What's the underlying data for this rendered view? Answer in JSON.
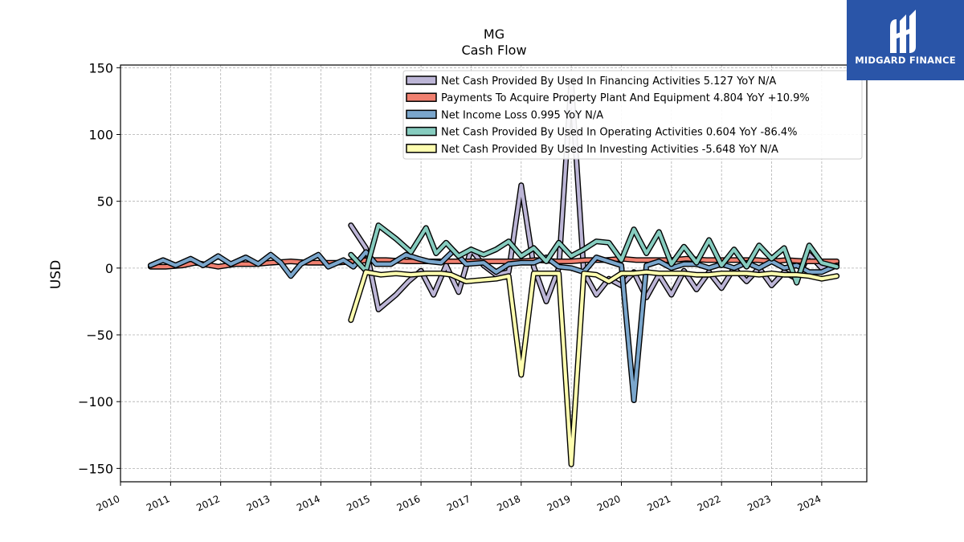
{
  "chart_data": {
    "type": "line",
    "title": "MG",
    "subtitle": "Cash Flow",
    "ylabel": "USD",
    "xlabel": "",
    "ylim": [
      -160,
      152
    ],
    "xlim": [
      2010.0,
      2024.9
    ],
    "yticks": [
      -150,
      -100,
      -50,
      0,
      50,
      100,
      150
    ],
    "ytick_labels": [
      "−150",
      "−100",
      "−50",
      "0",
      "50",
      "100",
      "150"
    ],
    "xticks": [
      2010,
      2011,
      2012,
      2013,
      2014,
      2015,
      2016,
      2017,
      2018,
      2019,
      2020,
      2021,
      2022,
      2023,
      2024
    ],
    "xtick_labels": [
      "2010",
      "2011",
      "2012",
      "2013",
      "2014",
      "2015",
      "2016",
      "2017",
      "2018",
      "2019",
      "2020",
      "2021",
      "2022",
      "2023",
      "2024"
    ],
    "grid": true,
    "legend_position": "top-right",
    "series": [
      {
        "name": "Net Cash Provided By Used In Financing Activities",
        "legend_label": "Net Cash Provided By Used In Financing Activities  5.127 YoY N/A",
        "color": "#bcb5d6",
        "x": [
          2014.6,
          2014.9,
          2015.15,
          2015.5,
          2015.75,
          2016.0,
          2016.25,
          2016.5,
          2016.75,
          2017.0,
          2017.25,
          2017.5,
          2017.75,
          2018.0,
          2018.25,
          2018.5,
          2018.75,
          2019.0,
          2019.25,
          2019.5,
          2019.75,
          2020.0,
          2020.25,
          2020.5,
          2020.75,
          2021.0,
          2021.25,
          2021.5,
          2021.75,
          2022.0,
          2022.25,
          2022.5,
          2022.75,
          2023.0,
          2023.25,
          2023.5,
          2023.75,
          2024.0,
          2024.3
        ],
        "y": [
          32,
          15,
          -31,
          -20,
          -10,
          -2,
          -20,
          2,
          -18,
          14,
          2,
          -5,
          -3,
          62,
          1,
          -25,
          0,
          140,
          -3,
          -20,
          -8,
          -13,
          -3,
          -22,
          -5,
          -20,
          -2,
          -16,
          -3,
          -15,
          0,
          -10,
          0,
          -13,
          -3,
          -8,
          10,
          0,
          4
        ]
      },
      {
        "name": "Payments To Acquire Property Plant And Equipment",
        "legend_label": "Payments To Acquire Property Plant And Equipment  4.804 YoY +10.9%",
        "color": "#f08070",
        "x": [
          2010.6,
          2010.9,
          2011.25,
          2011.5,
          2011.95,
          2012.3,
          2012.7,
          2013.0,
          2013.4,
          2013.75,
          2014.0,
          2014.3,
          2014.7,
          2014.95,
          2015.3,
          2015.7,
          2016.0,
          2016.3,
          2016.7,
          2017.0,
          2017.3,
          2017.7,
          2018.0,
          2018.3,
          2018.7,
          2019.0,
          2019.3,
          2019.7,
          2020.0,
          2020.3,
          2020.7,
          2021.0,
          2021.3,
          2021.7,
          2022.0,
          2022.3,
          2022.7,
          2023.0,
          2023.3,
          2023.7,
          2024.0,
          2024.3
        ],
        "y": [
          1,
          1,
          2,
          4,
          1,
          3,
          3,
          4,
          5,
          4,
          4,
          4,
          5,
          6,
          6,
          5,
          5,
          5,
          5,
          5,
          5,
          5,
          5,
          6,
          5,
          5,
          6,
          6,
          7,
          6,
          6,
          6,
          7,
          6,
          6,
          6,
          6,
          5,
          6,
          5,
          5,
          5
        ]
      },
      {
        "name": "Net Income Loss",
        "legend_label": "Net Income Loss  0.995 YoY N/A",
        "color": "#7aa6cc",
        "x": [
          2010.6,
          2010.85,
          2011.1,
          2011.4,
          2011.65,
          2011.95,
          2012.2,
          2012.5,
          2012.75,
          2013.0,
          2013.2,
          2013.4,
          2013.6,
          2013.95,
          2014.15,
          2014.45,
          2014.65,
          2014.9,
          2015.1,
          2015.4,
          2015.7,
          2015.95,
          2016.15,
          2016.4,
          2016.65,
          2016.9,
          2017.25,
          2017.5,
          2017.75,
          2018.0,
          2018.25,
          2018.5,
          2018.75,
          2019.0,
          2019.25,
          2019.5,
          2019.75,
          2020.0,
          2020.25,
          2020.5,
          2020.75,
          2021.0,
          2021.25,
          2021.5,
          2021.75,
          2022.0,
          2022.25,
          2022.5,
          2022.75,
          2023.0,
          2023.25,
          2023.5,
          2023.75,
          2024.0,
          2024.3
        ],
        "y": [
          2,
          6,
          2,
          7,
          2,
          9,
          3,
          8,
          3,
          10,
          4,
          -6,
          3,
          10,
          1,
          6,
          1,
          12,
          3,
          3,
          10,
          7,
          5,
          4,
          13,
          3,
          4,
          -3,
          3,
          4,
          4,
          8,
          1,
          0,
          -3,
          8,
          5,
          2,
          -99,
          2,
          5,
          0,
          3,
          3,
          0,
          3,
          0,
          4,
          0,
          5,
          0,
          2,
          -3,
          -3,
          2
        ]
      },
      {
        "name": "Net Cash Provided By Used In Operating Activities",
        "legend_label": "Net Cash Provided By Used In Operating Activities  0.604 YoY -86.4%",
        "color": "#86ccbf",
        "x": [
          2014.6,
          2014.9,
          2015.15,
          2015.5,
          2015.8,
          2016.1,
          2016.3,
          2016.5,
          2016.75,
          2017.0,
          2017.25,
          2017.5,
          2017.75,
          2018.0,
          2018.25,
          2018.5,
          2018.75,
          2019.0,
          2019.25,
          2019.5,
          2019.75,
          2020.0,
          2020.25,
          2020.5,
          2020.75,
          2021.0,
          2021.25,
          2021.5,
          2021.75,
          2022.0,
          2022.25,
          2022.5,
          2022.75,
          2023.0,
          2023.25,
          2023.5,
          2023.75,
          2024.0,
          2024.3
        ],
        "y": [
          10,
          -2,
          32,
          22,
          12,
          30,
          11,
          19,
          9,
          14,
          10,
          14,
          20,
          9,
          15,
          5,
          19,
          9,
          14,
          20,
          19,
          6,
          29,
          11,
          27,
          3,
          16,
          4,
          21,
          2,
          14,
          1,
          17,
          7,
          15,
          -11,
          17,
          4,
          1
        ]
      },
      {
        "name": "Net Cash Provided By Used In Investing Activities",
        "legend_label": "Net Cash Provided By Used In Investing Activities  -5.648 YoY N/A",
        "color": "#fefeb0",
        "x": [
          2014.6,
          2014.9,
          2015.2,
          2015.5,
          2015.8,
          2016.1,
          2016.4,
          2016.6,
          2016.9,
          2017.2,
          2017.5,
          2017.75,
          2018.0,
          2018.25,
          2018.5,
          2018.75,
          2019.0,
          2019.25,
          2019.5,
          2019.75,
          2020.0,
          2020.25,
          2020.5,
          2020.75,
          2021.0,
          2021.25,
          2021.5,
          2021.75,
          2022.0,
          2022.25,
          2022.5,
          2022.75,
          2023.0,
          2023.25,
          2023.5,
          2023.75,
          2024.0,
          2024.3
        ],
        "y": [
          -39,
          -3,
          -5,
          -4,
          -5,
          -4,
          -4,
          -5,
          -10,
          -9,
          -8,
          -6,
          -80,
          -4,
          -4,
          -4,
          -147,
          -4,
          -5,
          -10,
          -4,
          -4,
          -3,
          -4,
          -4,
          -4,
          -5,
          -5,
          -4,
          -4,
          -4,
          -5,
          -4,
          -5,
          -5,
          -6,
          -8,
          -6
        ]
      }
    ]
  },
  "logo": {
    "text": "MIDGARD FINANCE"
  }
}
